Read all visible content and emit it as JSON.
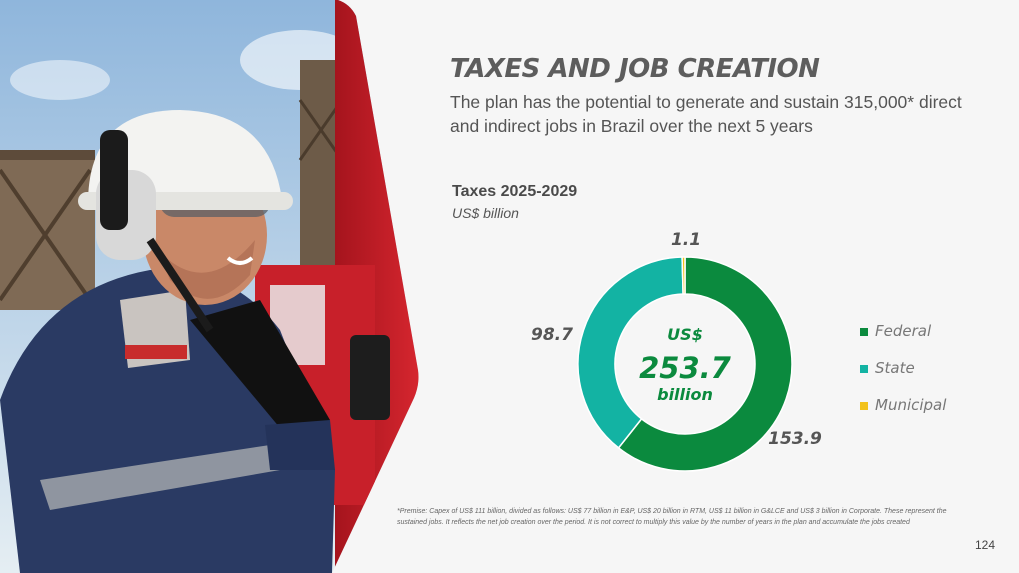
{
  "slide": {
    "title": "TAXES AND JOB CREATION",
    "subtitle": "The plan has the potential to generate and sustain 315,000* direct and indirect jobs in Brazil over the next 5 years",
    "footnote": "*Premise: Capex of US$ 111 billion, divided as follows: US$ 77 billion in E&P, US$ 20 billion in RTM, US$ 11 billion in G&LCE and US$ 3 billion in Corporate. These represent the sustained jobs. It reflects the net job creation over the period. It is not correct to multiply this value by the number of years in the plan and accumulate the jobs created",
    "page_number": "124"
  },
  "chart_data": {
    "type": "pie",
    "title": "Taxes 2025-2029",
    "unit": "US$ billion",
    "donut": true,
    "center_label": [
      "US$",
      "253.7",
      "billion"
    ],
    "categories": [
      "Federal",
      "State",
      "Municipal"
    ],
    "values": [
      153.9,
      98.7,
      1.1
    ],
    "value_labels": [
      "153.9",
      "98.7",
      "1.1"
    ],
    "colors": [
      "#0b8a3e",
      "#13b3a3",
      "#f2c21b"
    ],
    "center_color": "#0b8a3e",
    "legend_position": "right"
  },
  "photo": {
    "colors": {
      "sky": "#aecde6",
      "truck_red": "#c8202a",
      "uniform": "#2a3a63",
      "helmet": "#f3f3f1",
      "skin": "#c98868"
    }
  }
}
